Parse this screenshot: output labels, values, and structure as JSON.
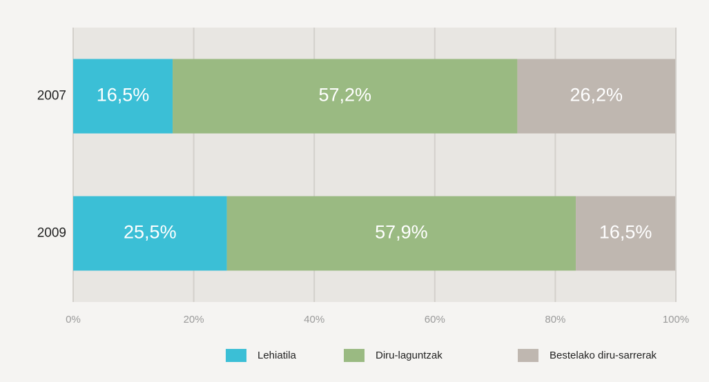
{
  "chart_data": {
    "type": "stacked-bar-horizontal",
    "categories": [
      "2007",
      "2009"
    ],
    "series": [
      {
        "name": "Lehiatila",
        "color": "#3bbfd6",
        "values": [
          16.5,
          25.5
        ],
        "value_labels": [
          "16,5%",
          "25,5%"
        ]
      },
      {
        "name": "Diru-laguntzak",
        "color": "#9aba82",
        "values": [
          57.2,
          57.9
        ],
        "value_labels": [
          "57,2%",
          "57,9%"
        ]
      },
      {
        "name": "Bestelako diru-sarrerak",
        "color": "#bfb7b0",
        "values": [
          26.2,
          16.5
        ],
        "value_labels": [
          "26,2%",
          "16,5%"
        ]
      }
    ],
    "xlim": [
      0,
      100
    ],
    "xticks": [
      {
        "value": 0,
        "label": "0%"
      },
      {
        "value": 20,
        "label": "20%"
      },
      {
        "value": 40,
        "label": "40%"
      },
      {
        "value": 60,
        "label": "60%"
      },
      {
        "value": 80,
        "label": "80%"
      },
      {
        "value": 100,
        "label": "100%"
      }
    ],
    "grid": true,
    "legend": "bottom"
  }
}
